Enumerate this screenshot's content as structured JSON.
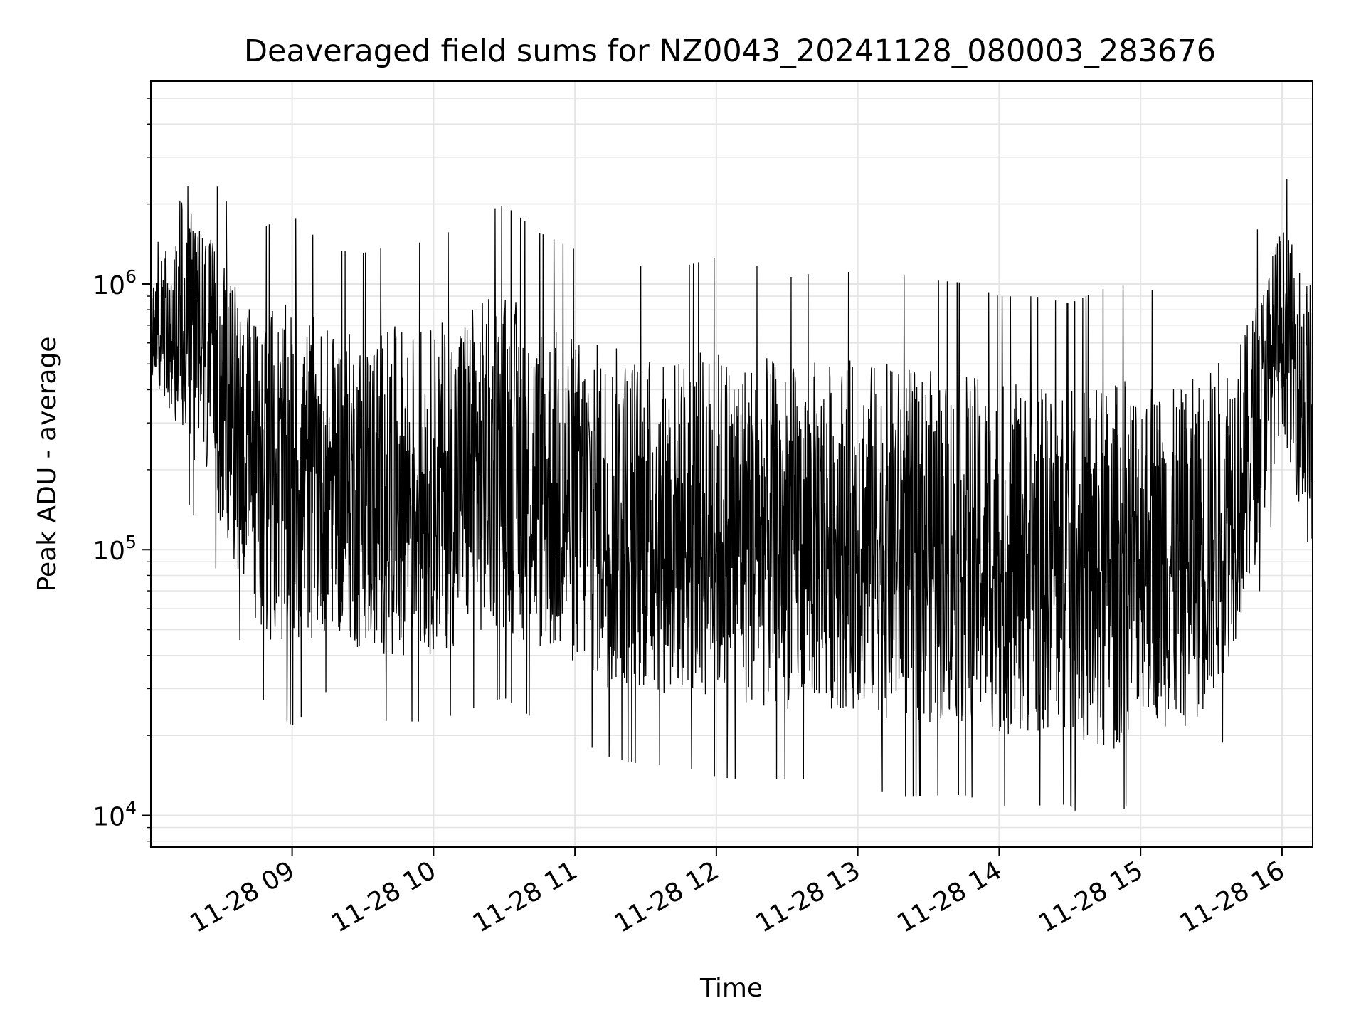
{
  "chart_data": {
    "type": "line",
    "title": "Deaveraged field sums for NZ0043_20241128_080003_283676",
    "xlabel": "Time",
    "ylabel": "Peak ADU - average",
    "x_scale": "time",
    "y_scale": "log",
    "xlim": [
      "2024-11-28 08:00:03",
      "2024-11-28 16:13:00"
    ],
    "ylim": [
      7600,
      5800000
    ],
    "x_tick_labels": [
      "11-28 09",
      "11-28 10",
      "11-28 11",
      "11-28 12",
      "11-28 13",
      "11-28 14",
      "11-28 15",
      "11-28 16"
    ],
    "y_tick_labels": [
      {
        "base": "10",
        "exp": "4"
      },
      {
        "base": "10",
        "exp": "5"
      },
      {
        "base": "10",
        "exp": "6"
      }
    ],
    "y_tick_values": [
      10000,
      100000,
      1000000
    ],
    "grid": true,
    "line_color": "#000000",
    "grid_color": "#e5e5e5",
    "series": [
      {
        "x": [
          "2024-11-28 08:00",
          "2024-11-28 08:15",
          "2024-11-28 08:30",
          "2024-11-28 08:45",
          "2024-11-28 09:00",
          "2024-11-28 09:15",
          "2024-11-28 09:30",
          "2024-11-28 09:45",
          "2024-11-28 10:00",
          "2024-11-28 10:15",
          "2024-11-28 10:30",
          "2024-11-28 10:45",
          "2024-11-28 11:00",
          "2024-11-28 11:15",
          "2024-11-28 11:30",
          "2024-11-28 11:45",
          "2024-11-28 12:00",
          "2024-11-28 12:15",
          "2024-11-28 12:30",
          "2024-11-28 12:45",
          "2024-11-28 13:00",
          "2024-11-28 13:15",
          "2024-11-28 13:30",
          "2024-11-28 13:45",
          "2024-11-28 14:00",
          "2024-11-28 14:15",
          "2024-11-28 14:30",
          "2024-11-28 14:45",
          "2024-11-28 15:00",
          "2024-11-28 15:15",
          "2024-11-28 15:30",
          "2024-11-28 15:45",
          "2024-11-28 16:00",
          "2024-11-28 16:13"
        ],
        "y_low": [
          450000,
          250000,
          120000,
          50000,
          40000,
          50000,
          40000,
          40000,
          40000,
          45000,
          50000,
          40000,
          35000,
          30000,
          28000,
          28000,
          26000,
          25000,
          25000,
          25000,
          25000,
          22000,
          22000,
          22000,
          20000,
          20000,
          20000,
          15000,
          25000,
          20000,
          25000,
          60000,
          300000,
          80000
        ],
        "y_high": [
          900000,
          2500000,
          1200000,
          800000,
          850000,
          700000,
          650000,
          700000,
          700000,
          850000,
          950000,
          750000,
          650000,
          600000,
          550000,
          550000,
          580000,
          550000,
          500000,
          520000,
          520000,
          500000,
          480000,
          470000,
          420000,
          420000,
          400000,
          420000,
          480000,
          400000,
          500000,
          700000,
          1700000,
          1000000
        ]
      }
    ]
  }
}
